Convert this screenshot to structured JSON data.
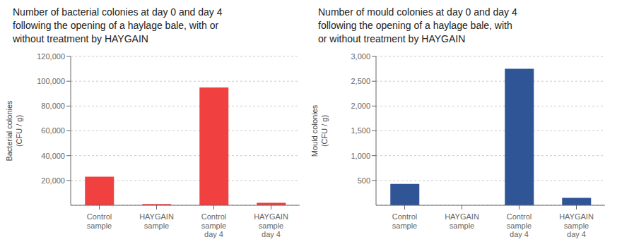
{
  "chart_data": [
    {
      "type": "bar",
      "title": "Number of bacterial colonies at day 0 and day 4\nfollowing the opening of a haylage bale, with or\nwithout treatment by HAYGAIN",
      "categories": [
        "Control\nsample",
        "HAYGAIN\nsample",
        "Control\nsample\nday 4",
        "HAYGAIN\nsample\nday 4"
      ],
      "values": [
        23000,
        1000,
        95000,
        2000
      ],
      "color": "#f04040",
      "y_label": "Bacterial colonies\n(CFU / g)",
      "ylim": [
        0,
        120000
      ],
      "yticks": [
        {
          "value": 20000,
          "label": "20,000"
        },
        {
          "value": 40000,
          "label": "40,000"
        },
        {
          "value": 60000,
          "label": "60,000"
        },
        {
          "value": 80000,
          "label": "80,000"
        },
        {
          "value": 100000,
          "label": "100,000"
        },
        {
          "value": 120000,
          "label": "120,000"
        }
      ],
      "grid": true
    },
    {
      "type": "bar",
      "title": "Number of mould colonies at day 0 and day 4\nfollowing the opening of a haylage bale, with\nor without treatment by HAYGAIN",
      "categories": [
        "Control\nsample",
        "HAYGAIN\nsample",
        "Control\nsample\nday 4",
        "HAYGAIN\nsample\nday 4"
      ],
      "values": [
        430,
        0,
        2750,
        150
      ],
      "color": "#2f5597",
      "y_label": "Mould colonies\n(CFU / g)",
      "ylim": [
        0,
        3000
      ],
      "yticks": [
        500,
        {
          "value": 1000,
          "label": "1,000"
        },
        {
          "value": 1500,
          "label": "1,500"
        },
        {
          "value": 2000,
          "label": "2,000"
        },
        {
          "value": 2500,
          "label": "2,500"
        },
        {
          "value": 3000,
          "label": "3,000"
        }
      ],
      "grid": true
    }
  ]
}
